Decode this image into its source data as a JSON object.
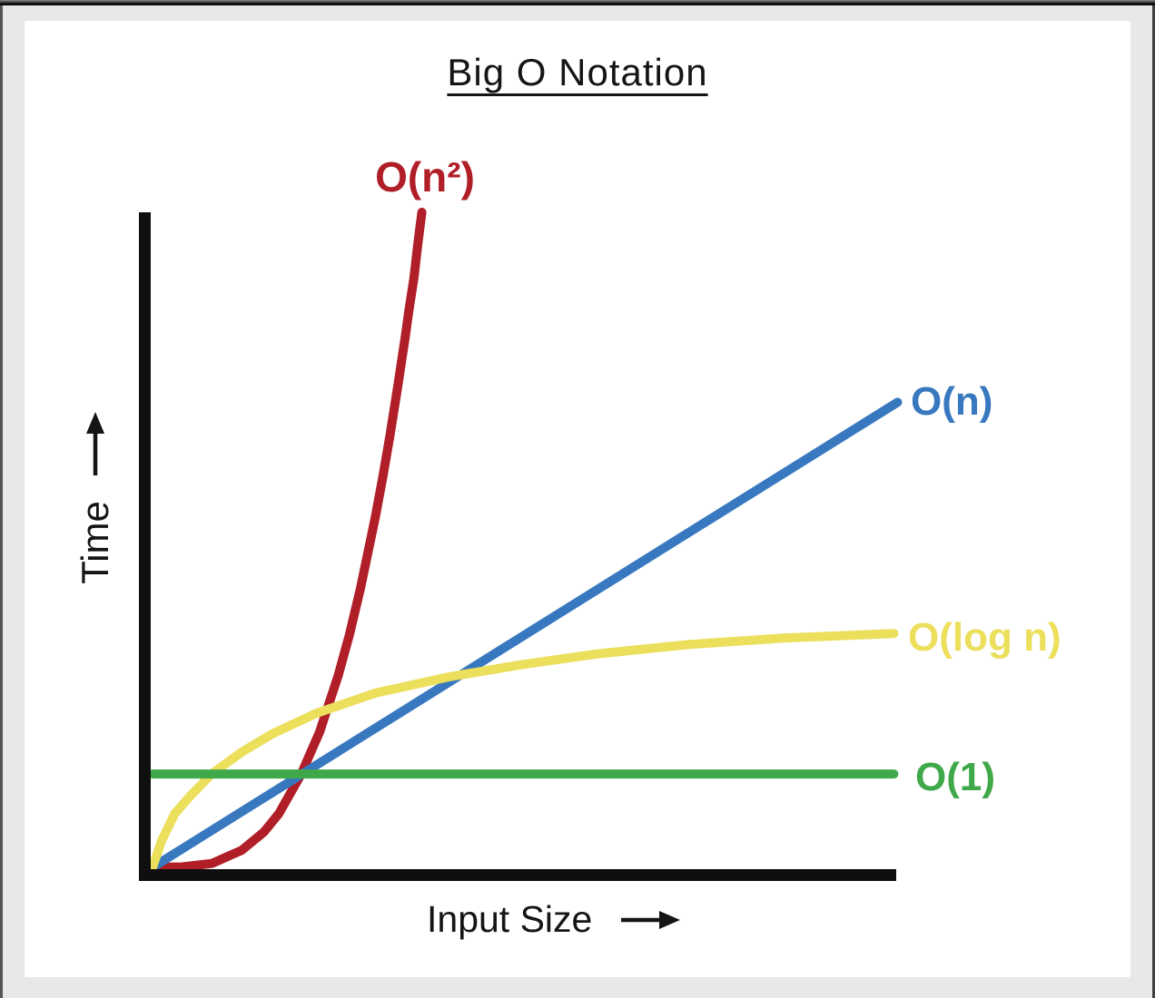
{
  "chart_data": {
    "type": "line",
    "title": "Big O Notation",
    "xlabel": "Input Size",
    "ylabel": "Time",
    "grid": false,
    "axes_numeric_ticks": false,
    "legend_position": "end-of-line labels (right side / at curve tip)",
    "x_range_normalized": [
      0,
      1
    ],
    "y_range_normalized": [
      0,
      1
    ],
    "colors": {
      "axis": "#0f0f0f",
      "o_n2": "#b01e28",
      "o_n": "#3778bf",
      "o_log_n": "#ebdf5c",
      "o_1": "#3fa94a"
    },
    "series": [
      {
        "name": "O(n²)",
        "color": "#b01e28",
        "shape": "steep polynomial curve from origin, exits top of plot about 36% across",
        "points": [
          [
            0,
            0
          ],
          [
            0.04,
            0.0007
          ],
          [
            0.08,
            0.006
          ],
          [
            0.12,
            0.026
          ],
          [
            0.15,
            0.054
          ],
          [
            0.17,
            0.082
          ],
          [
            0.2,
            0.142
          ],
          [
            0.225,
            0.207
          ],
          [
            0.25,
            0.293
          ],
          [
            0.265,
            0.355
          ],
          [
            0.28,
            0.426
          ],
          [
            0.3,
            0.535
          ],
          [
            0.31,
            0.596
          ],
          [
            0.32,
            0.662
          ],
          [
            0.33,
            0.733
          ],
          [
            0.34,
            0.808
          ],
          [
            0.345,
            0.849
          ],
          [
            0.352,
            0.9
          ],
          [
            0.357,
            0.95
          ],
          [
            0.3626,
            1.0
          ]
        ]
      },
      {
        "name": "O(n)",
        "color": "#3778bf",
        "shape": "straight line from origin to upper right",
        "points": [
          [
            0,
            0
          ],
          [
            0.25,
            0.177
          ],
          [
            0.5,
            0.354
          ],
          [
            0.75,
            0.531
          ],
          [
            1.003,
            0.71
          ]
        ]
      },
      {
        "name": "O(log n)",
        "color": "#ebdf5c",
        "shape": "logarithmic curve, rises quickly then flattens",
        "points": [
          [
            0,
            0
          ],
          [
            0.012,
            0.04
          ],
          [
            0.03,
            0.082
          ],
          [
            0.05,
            0.108
          ],
          [
            0.08,
            0.143
          ],
          [
            0.12,
            0.176
          ],
          [
            0.16,
            0.203
          ],
          [
            0.22,
            0.235
          ],
          [
            0.3,
            0.266
          ],
          [
            0.4,
            0.291
          ],
          [
            0.5,
            0.31
          ],
          [
            0.6,
            0.326
          ],
          [
            0.72,
            0.34
          ],
          [
            0.85,
            0.35
          ],
          [
            0.998,
            0.357
          ]
        ]
      },
      {
        "name": "O(1)",
        "color": "#3fa94a",
        "shape": "constant horizontal line",
        "points": [
          [
            0,
            0.1425
          ],
          [
            0.998,
            0.1425
          ]
        ]
      }
    ]
  }
}
